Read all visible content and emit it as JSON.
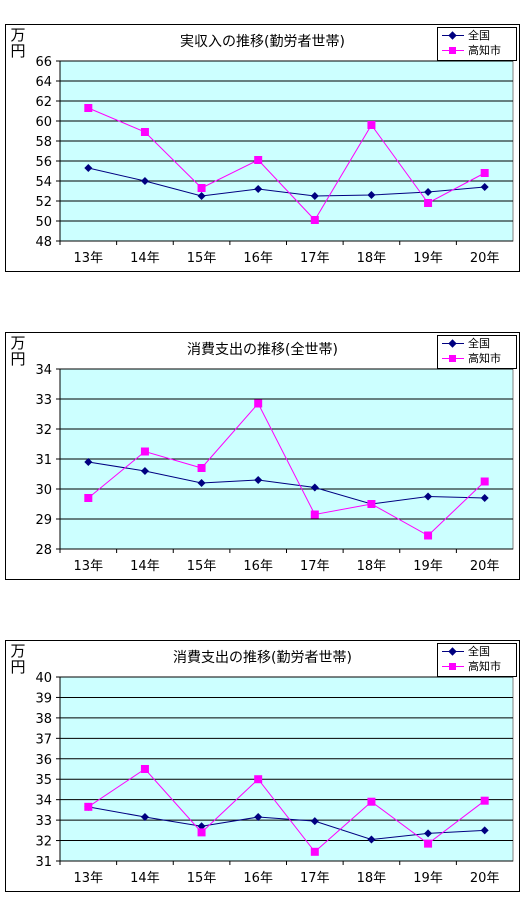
{
  "colors": {
    "national": "#000080",
    "kochi": "#ff00ff",
    "plot_bg": "#ccffff"
  },
  "chart_data": [
    {
      "type": "line",
      "title": "実収入の推移(勤労者世帯)",
      "ylabel": "万円",
      "categories": [
        "13年",
        "14年",
        "15年",
        "16年",
        "17年",
        "18年",
        "19年",
        "20年"
      ],
      "ylim": [
        48,
        66
      ],
      "yticks": [
        48,
        50,
        52,
        54,
        56,
        58,
        60,
        62,
        64,
        66
      ],
      "series": [
        {
          "name": "全国",
          "values": [
            55.3,
            54.0,
            52.5,
            53.2,
            52.5,
            52.6,
            52.9,
            53.4
          ]
        },
        {
          "name": "高知市",
          "values": [
            61.3,
            58.9,
            53.3,
            56.1,
            50.1,
            59.6,
            51.8,
            54.8
          ]
        }
      ]
    },
    {
      "type": "line",
      "title": "消費支出の推移(全世帯)",
      "ylabel": "万円",
      "categories": [
        "13年",
        "14年",
        "15年",
        "16年",
        "17年",
        "18年",
        "19年",
        "20年"
      ],
      "ylim": [
        28,
        34
      ],
      "yticks": [
        28,
        29,
        30,
        31,
        32,
        33,
        34
      ],
      "series": [
        {
          "name": "全国",
          "values": [
            30.9,
            30.6,
            30.2,
            30.3,
            30.05,
            29.5,
            29.75,
            29.7
          ]
        },
        {
          "name": "高知市",
          "values": [
            29.7,
            31.25,
            30.7,
            32.85,
            29.15,
            29.5,
            28.45,
            30.25
          ]
        }
      ]
    },
    {
      "type": "line",
      "title": "消費支出の推移(勤労者世帯)",
      "ylabel": "万円",
      "categories": [
        "13年",
        "14年",
        "15年",
        "16年",
        "17年",
        "18年",
        "19年",
        "20年"
      ],
      "ylim": [
        31,
        40
      ],
      "yticks": [
        31,
        32,
        33,
        34,
        35,
        36,
        37,
        38,
        39,
        40
      ],
      "series": [
        {
          "name": "全国",
          "values": [
            33.65,
            33.15,
            32.7,
            33.15,
            32.95,
            32.05,
            32.35,
            32.5
          ]
        },
        {
          "name": "高知市",
          "values": [
            33.65,
            35.5,
            32.4,
            35.0,
            31.45,
            33.9,
            31.85,
            33.95
          ]
        }
      ]
    }
  ]
}
